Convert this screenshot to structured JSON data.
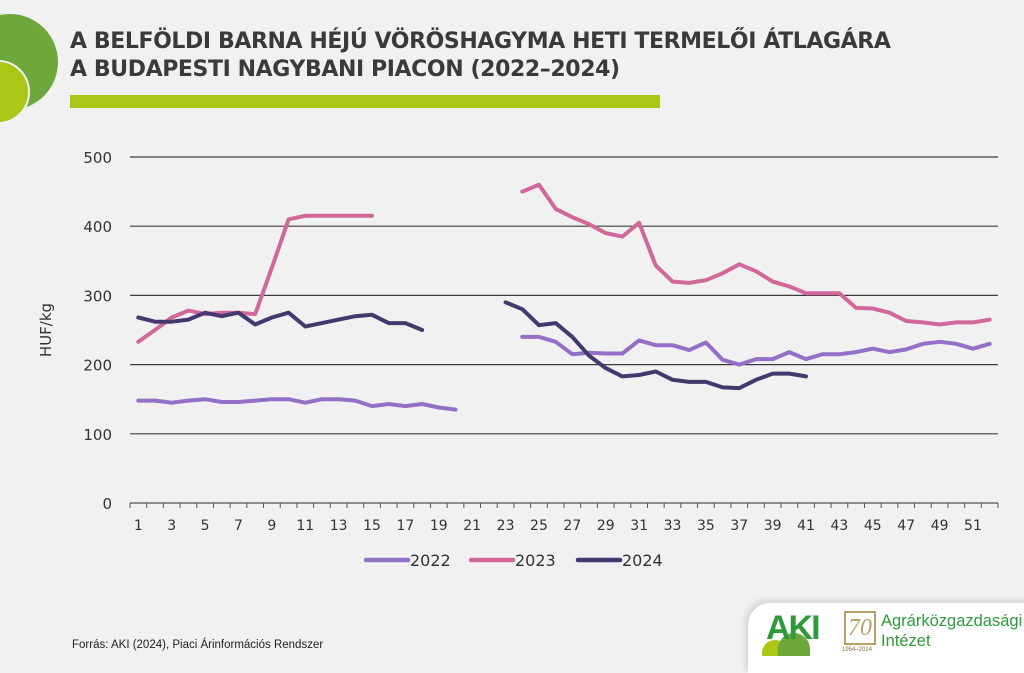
{
  "header": {
    "title_line1": "A BELFÖLDI BARNA HÉJÚ VÖRÖSHAGYMA HETI TERMELŐI ÁTLAGÁRA",
    "title_line2": "A BUDAPESTI NAGYBANI PIACON (2022–2024)"
  },
  "footer": {
    "source": "Forrás: AKI (2024), Piaci Árinformációs Rendszer",
    "logo_text": "AKI",
    "logo_anniversary": "70",
    "logo_years": "1954–2024",
    "institute_line1": "Agrárközgazdasági",
    "institute_line2": "Intézet"
  },
  "colors": {
    "accent_green": "#a9c714",
    "dark_green": "#6ea73b",
    "series_2022": "#9370c8",
    "series_2023": "#d0689a",
    "series_2024": "#44396e"
  },
  "chart_data": {
    "type": "line",
    "title": "A belföldi barna héjú vöröshagyma heti termelői átlagára a Budapesti Nagybani Piacon (2022–2024)",
    "xlabel": "",
    "ylabel": "HUF/kg",
    "ylim": [
      0,
      500
    ],
    "yticks": [
      0,
      100,
      200,
      300,
      400,
      500
    ],
    "xlim": [
      1,
      52
    ],
    "xtick_labels": [
      1,
      3,
      5,
      7,
      9,
      11,
      13,
      15,
      17,
      19,
      21,
      23,
      25,
      27,
      29,
      31,
      33,
      35,
      37,
      39,
      41,
      43,
      45,
      47,
      49,
      51
    ],
    "grid": "horizontal",
    "legend_position": "bottom",
    "x": [
      1,
      2,
      3,
      4,
      5,
      6,
      7,
      8,
      9,
      10,
      11,
      12,
      13,
      14,
      15,
      16,
      17,
      18,
      19,
      20,
      21,
      22,
      23,
      24,
      25,
      26,
      27,
      28,
      29,
      30,
      31,
      32,
      33,
      34,
      35,
      36,
      37,
      38,
      39,
      40,
      41,
      42,
      43,
      44,
      45,
      46,
      47,
      48,
      49,
      50,
      51,
      52
    ],
    "series": [
      {
        "name": "2022",
        "color": "#9370c8",
        "values": [
          148,
          148,
          145,
          148,
          150,
          146,
          146,
          148,
          150,
          150,
          145,
          150,
          150,
          148,
          140,
          143,
          140,
          143,
          138,
          135,
          null,
          null,
          null,
          240,
          240,
          233,
          215,
          217,
          216,
          216,
          235,
          228,
          228,
          221,
          232,
          207,
          200,
          208,
          208,
          218,
          208,
          215,
          215,
          218,
          223,
          218,
          222,
          230,
          233,
          230,
          223,
          230
        ]
      },
      {
        "name": "2023",
        "color": "#d0689a",
        "values": [
          233,
          250,
          268,
          278,
          273,
          275,
          275,
          273,
          340,
          410,
          415,
          415,
          415,
          415,
          415,
          null,
          null,
          null,
          null,
          null,
          null,
          null,
          null,
          450,
          460,
          425,
          413,
          403,
          390,
          385,
          405,
          343,
          320,
          318,
          322,
          332,
          345,
          335,
          320,
          313,
          303,
          303,
          303,
          282,
          281,
          275,
          263,
          261,
          258,
          261,
          261,
          265
        ]
      },
      {
        "name": "2024",
        "color": "#44396e",
        "values": [
          268,
          262,
          262,
          265,
          275,
          270,
          275,
          258,
          268,
          275,
          255,
          260,
          265,
          270,
          272,
          260,
          260,
          250,
          null,
          null,
          null,
          null,
          290,
          280,
          257,
          260,
          240,
          213,
          195,
          183,
          185,
          190,
          178,
          175,
          175,
          167,
          166,
          178,
          187,
          187,
          183,
          null,
          null,
          null,
          null,
          null,
          null,
          null,
          null,
          null,
          null,
          null
        ]
      }
    ]
  }
}
